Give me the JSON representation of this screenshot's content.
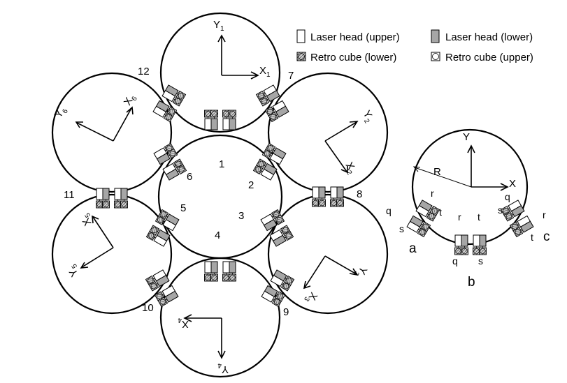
{
  "legend": {
    "laser_upper": "Laser head (upper)",
    "laser_lower": "Laser head (lower)",
    "retro_lower": "Retro cube (lower)",
    "retro_upper": "Retro cube (upper)"
  },
  "colors": {
    "line": "#000000",
    "laser_upper_fill": "#ffffff",
    "laser_lower_fill": "#a6a6a6",
    "retro_fill": "#c8c8c8"
  },
  "circle_labels": [
    "1",
    "2",
    "3",
    "4",
    "5",
    "6"
  ],
  "joint_labels": [
    "7",
    "8",
    "9",
    "10",
    "11",
    "12"
  ],
  "axes": {
    "Y1": "Y",
    "X1": "X",
    "Y1_sub": "1",
    "X1_sub": "1",
    "Y2": "Y",
    "X2": "X",
    "Y2_sub": "2",
    "X2_sub": "2",
    "Y3": "Y",
    "X3": "X",
    "Y3_sub": "3",
    "X3_sub": "3",
    "Y4": "Y",
    "X4": "X",
    "Y4_sub": "4",
    "X4_sub": "4",
    "Y5": "Y",
    "X5": "X",
    "Y5_sub": "5",
    "X5_sub": "5",
    "Y6": "Y",
    "X6": "X",
    "Y6_sub": "6",
    "X6_sub": "6"
  },
  "detail": {
    "axis_y": "Y",
    "axis_x": "X",
    "radius": "R",
    "group_a": "a",
    "group_b": "b",
    "group_c": "c",
    "q": "q",
    "r": "r",
    "s": "s",
    "t": "t"
  }
}
